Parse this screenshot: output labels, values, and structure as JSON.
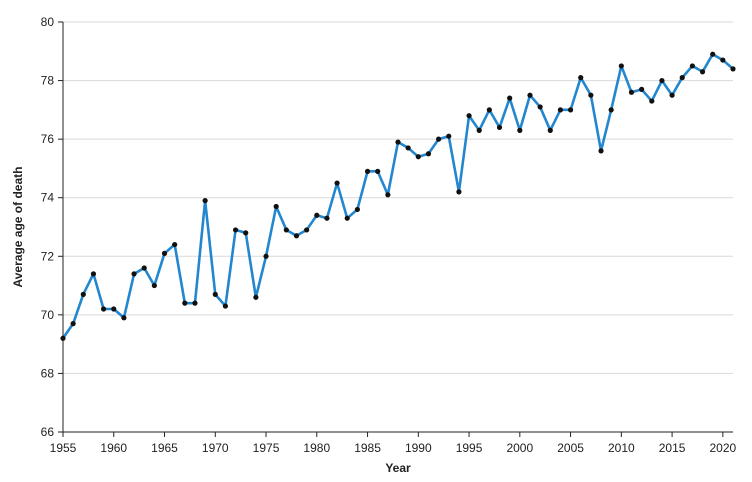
{
  "chart_data": {
    "type": "line",
    "title": "",
    "xlabel": "Year",
    "ylabel": "Average age of death",
    "xlim": [
      1955,
      2021
    ],
    "ylim": [
      66,
      80
    ],
    "x_ticks": [
      1955,
      1960,
      1965,
      1970,
      1975,
      1980,
      1985,
      1990,
      1995,
      2000,
      2005,
      2010,
      2015,
      2020
    ],
    "y_ticks": [
      66,
      68,
      70,
      72,
      74,
      76,
      78,
      80
    ],
    "grid": "horizontal",
    "legend": "none",
    "series": [
      {
        "line_color": "#2387d0",
        "marker_color": "#111111",
        "x": [
          1955,
          1956,
          1957,
          1958,
          1959,
          1960,
          1961,
          1962,
          1963,
          1964,
          1965,
          1966,
          1967,
          1968,
          1969,
          1970,
          1971,
          1972,
          1973,
          1974,
          1975,
          1976,
          1977,
          1978,
          1979,
          1980,
          1981,
          1982,
          1983,
          1984,
          1985,
          1986,
          1987,
          1988,
          1989,
          1990,
          1991,
          1992,
          1993,
          1994,
          1995,
          1996,
          1997,
          1998,
          1999,
          2000,
          2001,
          2002,
          2003,
          2004,
          2005,
          2006,
          2007,
          2008,
          2009,
          2010,
          2011,
          2012,
          2013,
          2014,
          2015,
          2016,
          2017,
          2018,
          2019,
          2020,
          2021
        ],
        "y": [
          69.2,
          69.7,
          70.7,
          71.4,
          70.2,
          70.2,
          69.9,
          71.4,
          71.6,
          71.0,
          72.1,
          72.4,
          70.4,
          70.4,
          73.9,
          70.7,
          70.3,
          72.9,
          72.8,
          70.6,
          72.0,
          73.7,
          72.9,
          72.7,
          72.9,
          73.4,
          73.3,
          74.5,
          73.3,
          73.6,
          74.9,
          74.9,
          74.1,
          75.9,
          75.7,
          75.4,
          75.5,
          76.0,
          76.1,
          74.2,
          76.8,
          76.3,
          77.0,
          76.4,
          77.4,
          76.3,
          77.5,
          77.1,
          76.3,
          77.0,
          77.0,
          78.1,
          77.5,
          75.6,
          77.0,
          78.5,
          77.6,
          77.7,
          77.3,
          78.0,
          77.5,
          78.1,
          78.5,
          78.3,
          78.9,
          78.7,
          78.4
        ]
      }
    ]
  }
}
